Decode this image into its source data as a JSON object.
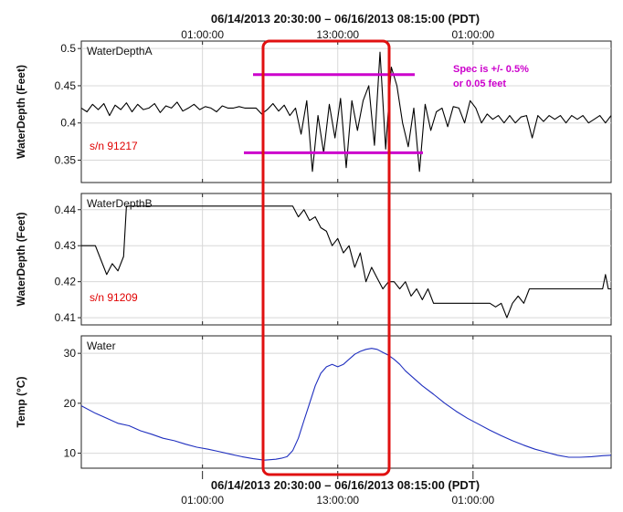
{
  "header": {
    "range_top": "06/14/2013 20:30:00  –  06/16/2013 08:15:00 (PDT)",
    "range_bottom": "06/14/2013 20:30:00  –  06/16/2013 08:15:00 (PDT)"
  },
  "colors": {
    "highlight_box": "#e01010",
    "spec_lines": "#cc00cc",
    "serial_text": "#e00000",
    "depth_series": "#000000",
    "temp_series": "#1f2fbf"
  },
  "chart_data": [
    {
      "type": "line",
      "title": "",
      "ylabel": "WaterDepth (Feet)",
      "ylim": [
        0.32,
        0.51
      ],
      "yticks": [
        "0.5",
        "0.45",
        "0.4",
        "0.35"
      ],
      "ytick_values": [
        0.5,
        0.45,
        0.4,
        0.35
      ],
      "xticks": [
        "01:00:00",
        "13:00:00",
        "01:00:00"
      ],
      "x_ticks_hours": [
        -25.5,
        -13.5,
        -1.5
      ],
      "grid": true,
      "series": [
        {
          "name": "WaterDepthA",
          "x_hours": [
            -36.25,
            -35.75,
            -35.25,
            -34.75,
            -34.25,
            -33.75,
            -33.25,
            -32.75,
            -32.25,
            -31.75,
            -31.25,
            -30.75,
            -30.25,
            -29.75,
            -29.25,
            -28.75,
            -28.25,
            -27.75,
            -27.25,
            -26.75,
            -26.25,
            -25.75,
            -25.25,
            -24.75,
            -24.25,
            -23.75,
            -23.25,
            -22.75,
            -22.25,
            -21.75,
            -21.25,
            -20.75,
            -20.25,
            -19.75,
            -19.25,
            -18.75,
            -18.25,
            -17.75,
            -17.25,
            -16.75,
            -16.25,
            -15.75,
            -15.25,
            -14.75,
            -14.25,
            -13.75,
            -13.25,
            -12.75,
            -12.25,
            -11.75,
            -11.25,
            -10.75,
            -10.25,
            -9.75,
            -9.25,
            -8.75,
            -8.25,
            -7.75,
            -7.25,
            -6.75,
            -6.25,
            -5.75,
            -5.25,
            -4.75,
            -4.25,
            -3.75,
            -3.25,
            -2.75,
            -2.25,
            -1.75,
            -1.25,
            -0.75,
            -0.25,
            0.25,
            0.75,
            1.25,
            1.75,
            2.25,
            2.75,
            3.25,
            3.75,
            4.25,
            4.75,
            5.25,
            5.75,
            6.25,
            6.75,
            7.25,
            7.75,
            8.25,
            8.75,
            9.25,
            9.75,
            10.25,
            10.75
          ],
          "values": [
            0.42,
            0.415,
            0.425,
            0.418,
            0.426,
            0.41,
            0.424,
            0.418,
            0.427,
            0.415,
            0.425,
            0.418,
            0.42,
            0.426,
            0.414,
            0.423,
            0.42,
            0.428,
            0.416,
            0.42,
            0.425,
            0.418,
            0.422,
            0.42,
            0.415,
            0.423,
            0.42,
            0.42,
            0.422,
            0.42,
            0.42,
            0.42,
            0.412,
            0.418,
            0.426,
            0.416,
            0.424,
            0.41,
            0.42,
            0.385,
            0.43,
            0.335,
            0.41,
            0.36,
            0.425,
            0.38,
            0.433,
            0.34,
            0.43,
            0.39,
            0.43,
            0.45,
            0.37,
            0.495,
            0.365,
            0.475,
            0.45,
            0.4,
            0.368,
            0.42,
            0.335,
            0.425,
            0.39,
            0.415,
            0.42,
            0.395,
            0.422,
            0.42,
            0.4,
            0.43,
            0.42,
            0.4,
            0.412,
            0.405,
            0.41,
            0.4,
            0.41,
            0.4,
            0.408,
            0.41,
            0.38,
            0.41,
            0.402,
            0.41,
            0.405,
            0.41,
            0.4,
            0.41,
            0.405,
            0.41,
            0.4,
            0.405,
            0.41,
            0.4,
            0.41
          ]
        }
      ]
    },
    {
      "type": "line",
      "title": "",
      "ylabel": "WaterDepth (Feet)",
      "ylim": [
        0.408,
        0.4445
      ],
      "yticks": [
        "0.44",
        "0.43",
        "0.42",
        "0.41"
      ],
      "ytick_values": [
        0.44,
        0.43,
        0.42,
        0.41
      ],
      "xticks": [
        "01:00:00",
        "13:00:00",
        "01:00:00"
      ],
      "x_ticks_hours": [
        -25.5,
        -13.5,
        -1.5
      ],
      "grid": true,
      "series": [
        {
          "name": "WaterDepthB",
          "x_hours": [
            -36.25,
            -35.0,
            -34.5,
            -34.0,
            -33.5,
            -33.0,
            -32.5,
            -32.25,
            -28.0,
            -26.0,
            -24.0,
            -22.0,
            -20.0,
            -18.0,
            -17.5,
            -17.0,
            -16.5,
            -16.0,
            -15.5,
            -15.0,
            -14.5,
            -14.0,
            -13.5,
            -13.0,
            -12.5,
            -12.0,
            -11.5,
            -11.0,
            -10.5,
            -10.0,
            -9.5,
            -9.0,
            -8.5,
            -8.0,
            -7.5,
            -7.0,
            -6.5,
            -6.0,
            -5.5,
            -5.0,
            -4.5,
            -4.0,
            -3.0,
            -2.0,
            -1.0,
            0.0,
            0.5,
            1.0,
            1.5,
            2.0,
            2.5,
            3.0,
            3.5,
            4.0,
            5.0,
            6.0,
            7.0,
            8.0,
            9.0,
            10.0,
            10.25,
            10.5,
            10.75
          ],
          "values": [
            0.43,
            0.43,
            0.426,
            0.422,
            0.425,
            0.423,
            0.427,
            0.441,
            0.441,
            0.441,
            0.441,
            0.441,
            0.441,
            0.441,
            0.441,
            0.438,
            0.44,
            0.437,
            0.438,
            0.435,
            0.434,
            0.43,
            0.432,
            0.428,
            0.43,
            0.424,
            0.428,
            0.42,
            0.424,
            0.421,
            0.418,
            0.42,
            0.42,
            0.418,
            0.42,
            0.416,
            0.418,
            0.415,
            0.418,
            0.414,
            0.414,
            0.414,
            0.414,
            0.414,
            0.414,
            0.414,
            0.413,
            0.414,
            0.41,
            0.414,
            0.416,
            0.414,
            0.418,
            0.418,
            0.418,
            0.418,
            0.418,
            0.418,
            0.418,
            0.418,
            0.422,
            0.418,
            0.418
          ]
        }
      ]
    },
    {
      "type": "line",
      "title": "",
      "ylabel": "Temp (°C)",
      "ylim": [
        7,
        33.5
      ],
      "yticks": [
        "30",
        "20",
        "10"
      ],
      "ytick_values": [
        30,
        20,
        10
      ],
      "xticks": [
        "01:00:00",
        "13:00:00",
        "01:00:00"
      ],
      "x_ticks_hours": [
        -25.5,
        -13.5,
        -1.5
      ],
      "grid": true,
      "series": [
        {
          "name": "Water",
          "x_hours": [
            -36.25,
            -35,
            -34,
            -33,
            -32,
            -31,
            -30,
            -29,
            -28,
            -27,
            -26,
            -25,
            -24,
            -23,
            -22,
            -21,
            -20,
            -19,
            -18.5,
            -18,
            -17.5,
            -17,
            -16.5,
            -16,
            -15.5,
            -15,
            -14.5,
            -14,
            -13.5,
            -13,
            -12.5,
            -12,
            -11.5,
            -11,
            -10.5,
            -10,
            -9.5,
            -9,
            -8.5,
            -8,
            -7.5,
            -7,
            -6,
            -5,
            -4,
            -3,
            -2,
            -1,
            0,
            1,
            2,
            3,
            4,
            5,
            6,
            7,
            8,
            9,
            10,
            10.75
          ],
          "values": [
            19.5,
            18,
            17,
            16,
            15.5,
            14.5,
            13.8,
            13,
            12.5,
            11.8,
            11.2,
            10.8,
            10.3,
            9.8,
            9.3,
            8.9,
            8.6,
            8.8,
            9,
            9.3,
            10.5,
            13,
            16.5,
            20,
            23.5,
            26,
            27.3,
            27.8,
            27.3,
            27.8,
            28.8,
            29.8,
            30.4,
            30.8,
            31,
            30.8,
            30.2,
            29.6,
            28.8,
            27.8,
            26.5,
            25.5,
            23.5,
            21.8,
            20,
            18.4,
            17,
            15.8,
            14.6,
            13.5,
            12.5,
            11.6,
            10.8,
            10.2,
            9.6,
            9.2,
            9.2,
            9.3,
            9.5,
            9.6
          ]
        }
      ]
    }
  ],
  "annotations": {
    "serial_a": "s/n 91217",
    "serial_b": "s/n 91209",
    "spec_line1": "Spec is +/- 0.5%",
    "spec_line2": "or 0.05 feet",
    "spec_upper_value": 0.465,
    "spec_lower_value": 0.36
  }
}
